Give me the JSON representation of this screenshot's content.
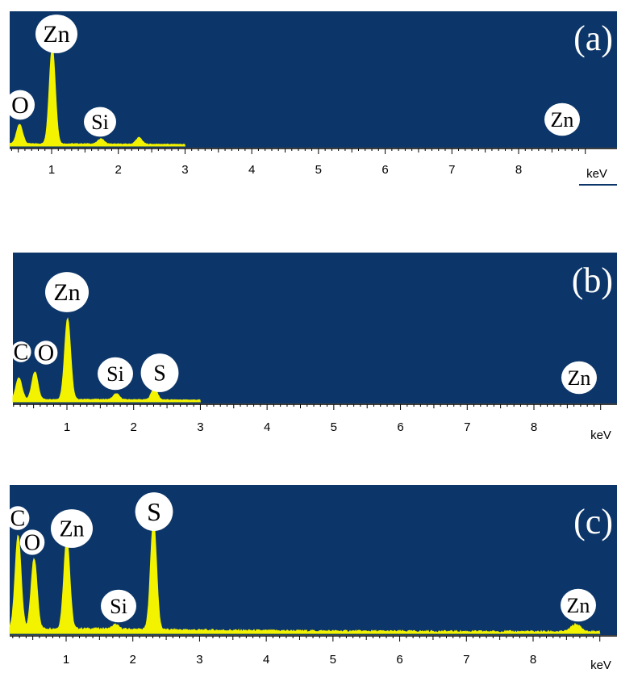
{
  "colors": {
    "background": "#0c3669",
    "spectrum": "#f3f300",
    "label_fill": "#ffffff",
    "label_text": "#000000",
    "axis": "#000000",
    "unit_underline": "#0c3669"
  },
  "chart_data": [
    {
      "type": "area",
      "panel_label": "(a)",
      "xlabel": "keV",
      "xlim": [
        0.2,
        9.0
      ],
      "x_ticks": [
        1,
        2,
        3,
        4,
        5,
        6,
        7,
        8
      ],
      "tick_labels": [
        "1",
        "2",
        "3",
        "4",
        "5",
        "6",
        "7",
        "8"
      ],
      "ylim": [
        0,
        100
      ],
      "spectrum_end_kev": 3.0,
      "peaks": [
        {
          "element": "O",
          "kev": 0.52,
          "height": 15
        },
        {
          "element": "Zn",
          "kev": 1.01,
          "height": 74
        },
        {
          "element": "Si",
          "kev": 1.74,
          "height": 4
        },
        {
          "element": "S",
          "kev": 2.31,
          "height": 5
        },
        {
          "element": "Zn",
          "kev": 8.64,
          "height": 4
        }
      ],
      "labels": [
        "O",
        "Zn",
        "Si",
        "Zn"
      ]
    },
    {
      "type": "area",
      "panel_label": "(b)",
      "xlabel": "keV",
      "xlim": [
        0.2,
        9.0
      ],
      "x_ticks": [
        1,
        2,
        3,
        4,
        5,
        6,
        7,
        8
      ],
      "tick_labels": [
        "1",
        "2",
        "3",
        "4",
        "5",
        "6",
        "7",
        "8"
      ],
      "ylim": [
        0,
        100
      ],
      "spectrum_end_kev": 3.0,
      "peaks": [
        {
          "element": "C",
          "kev": 0.28,
          "height": 15
        },
        {
          "element": "O",
          "kev": 0.52,
          "height": 19
        },
        {
          "element": "Zn",
          "kev": 1.01,
          "height": 56
        },
        {
          "element": "Si",
          "kev": 1.74,
          "height": 4
        },
        {
          "element": "S",
          "kev": 2.31,
          "height": 8
        },
        {
          "element": "Zn",
          "kev": 8.64,
          "height": 3
        }
      ],
      "labels": [
        "C",
        "O",
        "Zn",
        "Si",
        "S",
        "Zn"
      ]
    },
    {
      "type": "area",
      "panel_label": "(c)",
      "xlabel": "keV",
      "xlim": [
        0.2,
        9.0
      ],
      "x_ticks": [
        1,
        2,
        3,
        4,
        5,
        6,
        7,
        8
      ],
      "tick_labels": [
        "1",
        "2",
        "3",
        "4",
        "5",
        "6",
        "7",
        "8"
      ],
      "ylim": [
        0,
        100
      ],
      "spectrum_end_kev": 9.0,
      "peaks": [
        {
          "element": "C",
          "kev": 0.28,
          "height": 64
        },
        {
          "element": "O",
          "kev": 0.52,
          "height": 48
        },
        {
          "element": "Zn",
          "kev": 1.01,
          "height": 62
        },
        {
          "element": "Si",
          "kev": 1.74,
          "height": 3
        },
        {
          "element": "S",
          "kev": 2.31,
          "height": 75
        },
        {
          "element": "Zn",
          "kev": 8.64,
          "height": 5
        }
      ],
      "labels": [
        "C",
        "O",
        "Zn",
        "Si",
        "S",
        "Zn"
      ]
    }
  ]
}
